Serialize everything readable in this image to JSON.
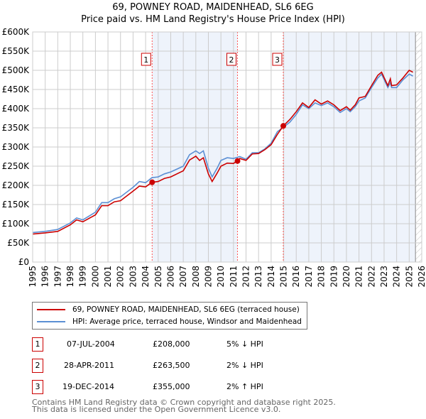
{
  "title": "69, POWNEY ROAD, MAIDENHEAD, SL6 6EG",
  "subtitle": "Price paid vs. HM Land Registry's House Price Index (HPI)",
  "chart_data": {
    "type": "line",
    "xlim": [
      1995,
      2026
    ],
    "ylim": [
      0,
      600000
    ],
    "yticks": [
      {
        "v": 0,
        "l": "£0"
      },
      {
        "v": 50000,
        "l": "£50K"
      },
      {
        "v": 100000,
        "l": "£100K"
      },
      {
        "v": 150000,
        "l": "£150K"
      },
      {
        "v": 200000,
        "l": "£200K"
      },
      {
        "v": 250000,
        "l": "£250K"
      },
      {
        "v": 300000,
        "l": "£300K"
      },
      {
        "v": 350000,
        "l": "£350K"
      },
      {
        "v": 400000,
        "l": "£400K"
      },
      {
        "v": 450000,
        "l": "£450K"
      },
      {
        "v": 500000,
        "l": "£500K"
      },
      {
        "v": 550000,
        "l": "£550K"
      },
      {
        "v": 600000,
        "l": "£600K"
      }
    ],
    "xticks": [
      "1995",
      "1996",
      "1997",
      "1998",
      "1999",
      "2000",
      "2001",
      "2002",
      "2003",
      "2004",
      "2005",
      "2006",
      "2007",
      "2008",
      "2009",
      "2010",
      "2011",
      "2012",
      "2013",
      "2014",
      "2015",
      "2016",
      "2017",
      "2018",
      "2019",
      "2020",
      "2021",
      "2022",
      "2023",
      "2024",
      "2025",
      "2026"
    ],
    "series": [
      {
        "name": "69, POWNEY ROAD, MAIDENHEAD, SL6 6EG (terraced house)",
        "color": "#cc0000",
        "x": [
          1995,
          1996,
          1997,
          1998,
          1998.5,
          1999,
          2000,
          2000.5,
          2001,
          2001.5,
          2002,
          2003,
          2003.5,
          2004,
          2004.5,
          2005,
          2005.5,
          2006,
          2007,
          2007.5,
          2008,
          2008.3,
          2008.6,
          2009,
          2009.3,
          2009.7,
          2010,
          2010.5,
          2011,
          2011.3,
          2011.5,
          2012,
          2012.5,
          2013,
          2013.5,
          2014,
          2014.5,
          2014.97,
          2015.5,
          2016,
          2016.5,
          2017,
          2017.5,
          2018,
          2018.5,
          2019,
          2019.5,
          2020,
          2020.3,
          2020.7,
          2021,
          2021.5,
          2022,
          2022.5,
          2022.8,
          2023.3,
          2023.5,
          2023.6,
          2024,
          2024.5,
          2025,
          2025.3
        ],
        "y": [
          73000,
          76000,
          80000,
          97000,
          110000,
          105000,
          123000,
          147000,
          147000,
          157000,
          160000,
          185000,
          198000,
          196000,
          208000,
          210000,
          218000,
          222000,
          238000,
          266000,
          276000,
          265000,
          272000,
          230000,
          210000,
          232000,
          250000,
          258000,
          257000,
          263500,
          270000,
          265000,
          282000,
          283000,
          293000,
          306000,
          333000,
          355000,
          372000,
          392000,
          415000,
          403000,
          423000,
          412000,
          420000,
          410000,
          395000,
          405000,
          396000,
          410000,
          428000,
          432000,
          460000,
          487000,
          495000,
          460000,
          478000,
          460000,
          462000,
          480000,
          500000,
          495000
        ]
      },
      {
        "name": "HPI: Average price, terraced house, Windsor and Maidenhead",
        "color": "#5b8fd4",
        "x": [
          1995,
          1996,
          1997,
          1998,
          1998.5,
          1999,
          2000,
          2000.5,
          2001,
          2001.5,
          2002,
          2003,
          2003.5,
          2004,
          2004.5,
          2005,
          2005.5,
          2006,
          2007,
          2007.5,
          2008,
          2008.3,
          2008.6,
          2009,
          2009.3,
          2009.7,
          2010,
          2010.5,
          2011,
          2011.5,
          2012,
          2012.5,
          2013,
          2013.5,
          2014,
          2014.5,
          2015,
          2015.5,
          2016,
          2016.5,
          2017,
          2017.5,
          2018,
          2018.5,
          2019,
          2019.5,
          2020,
          2020.3,
          2020.7,
          2021,
          2021.5,
          2022,
          2022.5,
          2022.8,
          2023.3,
          2023.5,
          2023.6,
          2024,
          2024.5,
          2025,
          2025.3
        ],
        "y": [
          77000,
          80000,
          85000,
          102000,
          115000,
          110000,
          130000,
          155000,
          155000,
          165000,
          170000,
          195000,
          210000,
          207000,
          220000,
          222000,
          230000,
          235000,
          250000,
          280000,
          290000,
          283000,
          290000,
          245000,
          222000,
          245000,
          265000,
          272000,
          270000,
          275000,
          268000,
          285000,
          285000,
          295000,
          310000,
          340000,
          352000,
          365000,
          385000,
          410000,
          400000,
          415000,
          408000,
          415000,
          405000,
          390000,
          400000,
          392000,
          405000,
          420000,
          428000,
          455000,
          480000,
          490000,
          455000,
          468000,
          455000,
          455000,
          475000,
          490000,
          485000
        ]
      }
    ],
    "sales": [
      {
        "n": "1",
        "x": 2004.52,
        "y": 208000
      },
      {
        "n": "2",
        "x": 2011.32,
        "y": 263500
      },
      {
        "n": "3",
        "x": 2014.97,
        "y": 355000
      }
    ],
    "forecast_from": 2025.5
  },
  "legend": [
    "69, POWNEY ROAD, MAIDENHEAD, SL6 6EG (terraced house)",
    "HPI: Average price, terraced house, Windsor and Maidenhead"
  ],
  "transactions": [
    {
      "n": "1",
      "date": "07-JUL-2004",
      "price": "£208,000",
      "hpi": "5% ↓ HPI"
    },
    {
      "n": "2",
      "date": "28-APR-2011",
      "price": "£263,500",
      "hpi": "2% ↓ HPI"
    },
    {
      "n": "3",
      "date": "19-DEC-2014",
      "price": "£355,000",
      "hpi": "2% ↑ HPI"
    }
  ],
  "footer": [
    "Contains HM Land Registry data © Crown copyright and database right 2025.",
    "This data is licensed under the Open Government Licence v3.0."
  ]
}
